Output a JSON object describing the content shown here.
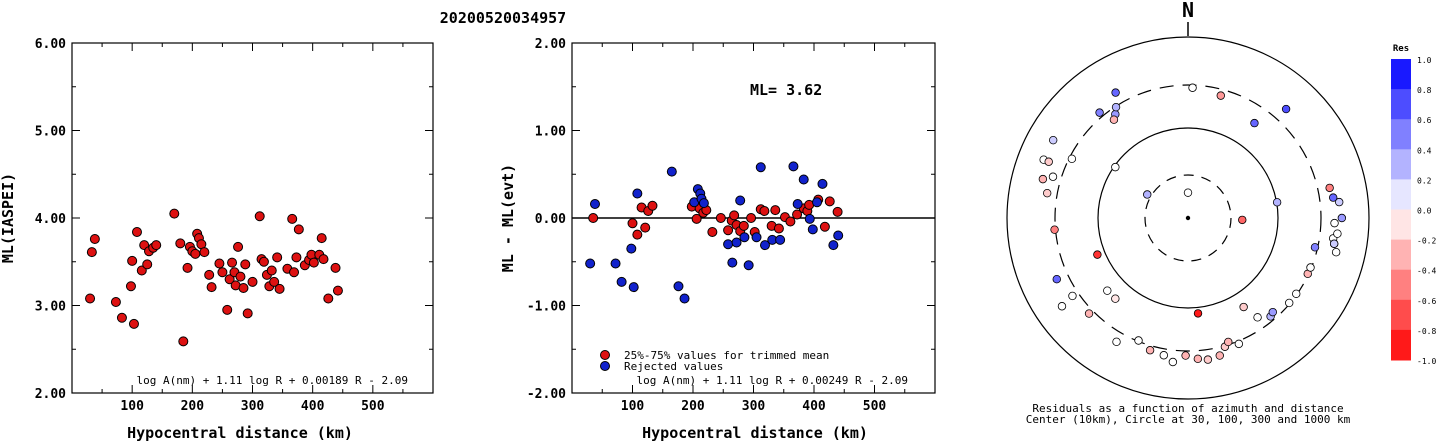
{
  "header": {
    "event_id": "20200520034957"
  },
  "chart_data": [
    {
      "type": "scatter",
      "xlabel": "Hypocentral distance (km)",
      "ylabel": "ML(IASPEI)",
      "xlim": [
        0,
        600
      ],
      "ylim": [
        2.0,
        6.0
      ],
      "xticks": [
        "100",
        "200",
        "300",
        "400",
        "500"
      ],
      "yticks": [
        "2.00",
        "3.00",
        "4.00",
        "5.00",
        "6.00"
      ],
      "formula": "log A(nm) + 1.11 log R + 0.00189 R - 2.09",
      "colors": {
        "point": "#dd1111"
      },
      "points": [
        [
          30,
          3.08
        ],
        [
          33,
          3.61
        ],
        [
          38,
          3.76
        ],
        [
          73,
          3.04
        ],
        [
          83,
          2.86
        ],
        [
          98,
          3.22
        ],
        [
          100,
          3.51
        ],
        [
          103,
          2.79
        ],
        [
          108,
          3.84
        ],
        [
          116,
          3.4
        ],
        [
          120,
          3.69
        ],
        [
          125,
          3.47
        ],
        [
          128,
          3.62
        ],
        [
          135,
          3.66
        ],
        [
          140,
          3.69
        ],
        [
          170,
          4.05
        ],
        [
          180,
          3.71
        ],
        [
          185,
          2.59
        ],
        [
          192,
          3.43
        ],
        [
          196,
          3.67
        ],
        [
          200,
          3.62
        ],
        [
          205,
          3.59
        ],
        [
          208,
          3.82
        ],
        [
          211,
          3.77
        ],
        [
          215,
          3.7
        ],
        [
          220,
          3.61
        ],
        [
          228,
          3.35
        ],
        [
          232,
          3.21
        ],
        [
          245,
          3.48
        ],
        [
          250,
          3.38
        ],
        [
          258,
          2.95
        ],
        [
          262,
          3.3
        ],
        [
          266,
          3.49
        ],
        [
          270,
          3.38
        ],
        [
          272,
          3.23
        ],
        [
          276,
          3.67
        ],
        [
          280,
          3.33
        ],
        [
          285,
          3.2
        ],
        [
          288,
          3.47
        ],
        [
          292,
          2.91
        ],
        [
          300,
          3.27
        ],
        [
          312,
          4.02
        ],
        [
          315,
          3.53
        ],
        [
          319,
          3.5
        ],
        [
          324,
          3.35
        ],
        [
          328,
          3.22
        ],
        [
          332,
          3.4
        ],
        [
          336,
          3.27
        ],
        [
          341,
          3.55
        ],
        [
          345,
          3.19
        ],
        [
          358,
          3.42
        ],
        [
          366,
          3.99
        ],
        [
          369,
          3.38
        ],
        [
          373,
          3.55
        ],
        [
          377,
          3.87
        ],
        [
          387,
          3.46
        ],
        [
          394,
          3.52
        ],
        [
          398,
          3.58
        ],
        [
          402,
          3.49
        ],
        [
          411,
          3.58
        ],
        [
          415,
          3.77
        ],
        [
          418,
          3.53
        ],
        [
          426,
          3.08
        ],
        [
          438,
          3.43
        ],
        [
          442,
          3.17
        ]
      ]
    },
    {
      "type": "scatter",
      "xlabel": "Hypocentral distance (km)",
      "ylabel": "ML - ML(evt)",
      "xlim": [
        0,
        600
      ],
      "ylim": [
        -2.0,
        2.0
      ],
      "xticks": [
        "100",
        "200",
        "300",
        "400",
        "500"
      ],
      "yticks": [
        "-2.00",
        "-1.00",
        "0.00",
        "1.00",
        "2.00"
      ],
      "annotation": "ML= 3.62",
      "formula": "log A(nm) + 1.11 log R + 0.00249 R - 2.09",
      "legend": [
        {
          "label": "25%-75% values for trimmed mean",
          "color": "#dd1111"
        },
        {
          "label": "Rejected values",
          "color": "#1122cc"
        }
      ],
      "series": [
        {
          "name": "25%-75% values for trimmed mean",
          "color": "#dd1111",
          "points": [
            [
              35,
              0.0
            ],
            [
              100,
              -0.06
            ],
            [
              108,
              -0.19
            ],
            [
              115,
              0.12
            ],
            [
              121,
              -0.11
            ],
            [
              126,
              0.08
            ],
            [
              133,
              0.14
            ],
            [
              198,
              0.13
            ],
            [
              206,
              -0.01
            ],
            [
              211,
              0.11
            ],
            [
              217,
              0.06
            ],
            [
              222,
              0.09
            ],
            [
              232,
              -0.16
            ],
            [
              246,
              0.0
            ],
            [
              258,
              -0.14
            ],
            [
              264,
              -0.03
            ],
            [
              268,
              0.03
            ],
            [
              272,
              -0.08
            ],
            [
              278,
              -0.15
            ],
            [
              284,
              -0.09
            ],
            [
              296,
              0.0
            ],
            [
              302,
              -0.16
            ],
            [
              312,
              0.1
            ],
            [
              318,
              0.08
            ],
            [
              330,
              -0.09
            ],
            [
              336,
              0.09
            ],
            [
              342,
              -0.12
            ],
            [
              352,
              0.01
            ],
            [
              361,
              -0.04
            ],
            [
              372,
              0.04
            ],
            [
              383,
              0.11
            ],
            [
              389,
              0.08
            ],
            [
              392,
              0.15
            ],
            [
              407,
              0.21
            ],
            [
              418,
              -0.1
            ],
            [
              426,
              0.19
            ],
            [
              439,
              0.07
            ]
          ]
        },
        {
          "name": "Rejected values",
          "color": "#1122cc",
          "points": [
            [
              30,
              -0.52
            ],
            [
              38,
              0.16
            ],
            [
              72,
              -0.52
            ],
            [
              82,
              -0.73
            ],
            [
              98,
              -0.35
            ],
            [
              102,
              -0.79
            ],
            [
              108,
              0.28
            ],
            [
              165,
              0.53
            ],
            [
              176,
              -0.78
            ],
            [
              186,
              -0.92
            ],
            [
              202,
              0.18
            ],
            [
              208,
              0.33
            ],
            [
              212,
              0.28
            ],
            [
              214,
              0.22
            ],
            [
              218,
              0.17
            ],
            [
              258,
              -0.3
            ],
            [
              265,
              -0.51
            ],
            [
              272,
              -0.28
            ],
            [
              278,
              0.2
            ],
            [
              285,
              -0.22
            ],
            [
              292,
              -0.54
            ],
            [
              305,
              -0.22
            ],
            [
              312,
              0.58
            ],
            [
              319,
              -0.31
            ],
            [
              331,
              -0.25
            ],
            [
              344,
              -0.25
            ],
            [
              366,
              0.59
            ],
            [
              373,
              0.16
            ],
            [
              383,
              0.44
            ],
            [
              393,
              -0.01
            ],
            [
              398,
              -0.13
            ],
            [
              405,
              0.18
            ],
            [
              414,
              0.39
            ],
            [
              432,
              -0.31
            ],
            [
              440,
              -0.2
            ]
          ]
        }
      ]
    },
    {
      "type": "scatter",
      "subtype": "polar",
      "north_label": "N",
      "caption_line1": "Residuals as a function of azimuth and distance",
      "caption_line2": "Center (10km), Circle at 30, 100, 300 and 1000 km",
      "colorbar": {
        "title": "Res",
        "ticks": [
          "1.0",
          "0.8",
          "0.6",
          "0.4",
          "0.2",
          "0.0",
          "-0.2",
          "-0.4",
          "-0.6",
          "-0.8",
          "-1.0"
        ],
        "positive_color": "#0000ff",
        "negative_color": "#ff0000"
      },
      "points": [
        [
          0,
          0.14,
          0.0
        ],
        [
          15,
          0.7,
          -0.4
        ],
        [
          2,
          0.72,
          0.0
        ],
        [
          42,
          0.81,
          0.7
        ],
        [
          330,
          0.8,
          0.6
        ],
        [
          320,
          0.76,
          0.5
        ],
        [
          325,
          0.7,
          0.4
        ],
        [
          327,
          0.73,
          0.3
        ],
        [
          323,
          0.68,
          -0.3
        ],
        [
          35,
          0.64,
          0.6
        ],
        [
          300,
          0.86,
          0.2
        ],
        [
          292,
          0.86,
          0.0
        ],
        [
          292,
          0.83,
          -0.2
        ],
        [
          287,
          0.78,
          0.0
        ],
        [
          297,
          0.72,
          0.0
        ],
        [
          305,
          0.49,
          0.0
        ],
        [
          300,
          0.26,
          0.3
        ],
        [
          285,
          0.83,
          -0.3
        ],
        [
          280,
          0.79,
          -0.2
        ],
        [
          265,
          0.74,
          -0.5
        ],
        [
          248,
          0.54,
          -0.8
        ],
        [
          245,
          0.8,
          0.6
        ],
        [
          235,
          0.85,
          0.0
        ],
        [
          236,
          0.77,
          0.0
        ],
        [
          228,
          0.6,
          0.0
        ],
        [
          226,
          0.76,
          -0.3
        ],
        [
          222,
          0.6,
          -0.1
        ],
        [
          210,
          0.79,
          0.0
        ],
        [
          202,
          0.73,
          0.0
        ],
        [
          196,
          0.76,
          -0.3
        ],
        [
          190,
          0.77,
          0.0
        ],
        [
          186,
          0.8,
          0.0
        ],
        [
          181,
          0.76,
          -0.3
        ],
        [
          176,
          0.78,
          -0.3
        ],
        [
          172,
          0.79,
          -0.2
        ],
        [
          167,
          0.78,
          -0.3
        ],
        [
          164,
          0.74,
          -0.2
        ],
        [
          162,
          0.72,
          -0.3
        ],
        [
          158,
          0.75,
          0.0
        ],
        [
          174,
          0.53,
          -0.9
        ],
        [
          148,
          0.58,
          -0.2
        ],
        [
          145,
          0.67,
          0.0
        ],
        [
          140,
          0.71,
          0.3
        ],
        [
          138,
          0.7,
          0.4
        ],
        [
          130,
          0.73,
          0.0
        ],
        [
          125,
          0.73,
          0.0
        ],
        [
          115,
          0.73,
          -0.3
        ],
        [
          112,
          0.73,
          0.0
        ],
        [
          103,
          0.72,
          0.5
        ],
        [
          98,
          0.81,
          0.0
        ],
        [
          103,
          0.84,
          0.0
        ],
        [
          100,
          0.82,
          -0.3
        ],
        [
          92,
          0.81,
          0.0
        ],
        [
          90,
          0.85,
          0.4
        ],
        [
          84,
          0.84,
          0.2
        ],
        [
          82,
          0.81,
          0.6
        ],
        [
          78,
          0.8,
          -0.5
        ],
        [
          100,
          0.82,
          0.2
        ],
        [
          96,
          0.83,
          0.0
        ],
        [
          80,
          0.5,
          0.3
        ],
        [
          92,
          0.3,
          -0.6
        ]
      ]
    }
  ]
}
